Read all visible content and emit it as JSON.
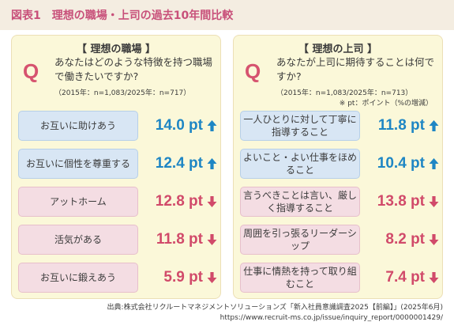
{
  "header": {
    "figure_label": "図表1",
    "title": "理想の職場・上司の過去10年間比較"
  },
  "chart_data": [
    {
      "type": "table",
      "title": "【 理想の職場 】",
      "question_mark": "Q",
      "question": "あなたはどのような特徴を持つ職場で働きたいですか?",
      "sample": "（2015年：n=1,083/2025年：n=717）",
      "note": "",
      "unit": "pt",
      "rows": [
        {
          "label": "お互いに助けあう",
          "value": 14.0,
          "display": "14.0 pt",
          "direction": "up"
        },
        {
          "label": "お互いに個性を尊重する",
          "value": 12.4,
          "display": "12.4 pt",
          "direction": "up"
        },
        {
          "label": "アットホーム",
          "value": 12.8,
          "display": "12.8 pt",
          "direction": "down"
        },
        {
          "label": "活気がある",
          "value": 11.8,
          "display": "11.8 pt",
          "direction": "down"
        },
        {
          "label": "お互いに鍛えあう",
          "value": 5.9,
          "display": "5.9 pt",
          "direction": "down"
        }
      ]
    },
    {
      "type": "table",
      "title": "【 理想の上司 】",
      "question_mark": "Q",
      "question": "あなたが上司に期待することは何ですか?",
      "sample": "（2015年：n=1,083/2025年：n=713）",
      "note": "※ pt：ポイント（%の増減）",
      "unit": "pt",
      "rows": [
        {
          "label": "一人ひとりに対して丁寧に指導すること",
          "value": 11.8,
          "display": "11.8 pt",
          "direction": "up"
        },
        {
          "label": "よいこと・よい仕事をほめること",
          "value": 10.4,
          "display": "10.4 pt",
          "direction": "up"
        },
        {
          "label": "言うべきことは言い、厳しく指導すること",
          "value": 13.8,
          "display": "13.8 pt",
          "direction": "down"
        },
        {
          "label": "周囲を引っ張るリーダーシップ",
          "value": 8.2,
          "display": "8.2 pt",
          "direction": "down"
        },
        {
          "label": "仕事に情熱を持って取り組むこと",
          "value": 7.4,
          "display": "7.4 pt",
          "direction": "down"
        }
      ]
    }
  ],
  "source": {
    "line1": "出典:株式会社リクルートマネジメントソリューションズ「新入社員意識調査2025【前編】」(2025年6月)",
    "line2": "https://www.recruit-ms.co.jp/issue/inquiry_report/0000001429/"
  },
  "colors": {
    "up_text": "#1e86c4",
    "down_text": "#d14a6a",
    "up_chip": "#d8e6f4",
    "down_chip": "#f4dde3",
    "panel": "#fbf8d9",
    "accent": "#c8507a"
  },
  "icons": {
    "up": "arrow-up-icon",
    "down": "arrow-down-icon"
  }
}
